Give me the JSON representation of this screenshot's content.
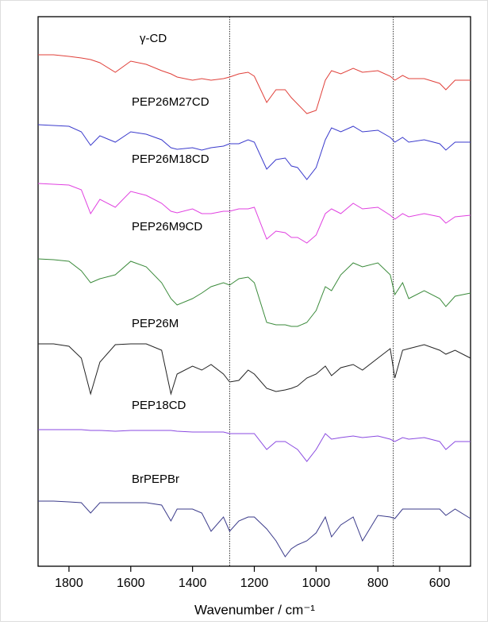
{
  "chart_data": {
    "type": "line",
    "x_label": "Wavenumber / cm⁻¹",
    "x": [
      1900,
      1850,
      1800,
      1760,
      1730,
      1700,
      1650,
      1600,
      1550,
      1500,
      1470,
      1450,
      1400,
      1370,
      1340,
      1300,
      1280,
      1250,
      1220,
      1200,
      1160,
      1130,
      1100,
      1080,
      1060,
      1030,
      1000,
      970,
      950,
      920,
      880,
      850,
      800,
      760,
      745,
      720,
      700,
      650,
      600,
      580,
      550,
      500
    ],
    "xlim": [
      1900,
      500
    ],
    "xticks": [
      1800,
      1600,
      1400,
      1200,
      1000,
      800,
      600
    ],
    "ylim": [
      0,
      692
    ],
    "vlines": [
      1280,
      750
    ],
    "series": [
      {
        "name": "γ-CD",
        "color": "#e0403a",
        "values": [
          644,
          644,
          642,
          640,
          638,
          634,
          622,
          636,
          632,
          624,
          620,
          616,
          612,
          614,
          612,
          614,
          616,
          620,
          622,
          617,
          584,
          600,
          600,
          590,
          582,
          570,
          574,
          612,
          624,
          620,
          627,
          622,
          624,
          617,
          612,
          618,
          614,
          614,
          608,
          600,
          612,
          612
        ]
      },
      {
        "name": "PEP26M27CD",
        "color": "#3a3acc",
        "values": [
          556,
          555,
          554,
          547,
          530,
          542,
          534,
          547,
          544,
          537,
          527,
          525,
          527,
          524,
          527,
          529,
          532,
          532,
          537,
          534,
          500,
          512,
          514,
          504,
          502,
          487,
          502,
          537,
          552,
          547,
          554,
          547,
          549,
          540,
          534,
          540,
          534,
          537,
          532,
          524,
          534,
          534
        ]
      },
      {
        "name": "PEP26M18CD",
        "color": "#e040e0",
        "values": [
          482,
          481,
          480,
          474,
          444,
          462,
          452,
          472,
          467,
          457,
          447,
          445,
          450,
          444,
          444,
          447,
          447,
          450,
          450,
          452,
          412,
          422,
          420,
          414,
          414,
          407,
          417,
          444,
          450,
          444,
          457,
          450,
          452,
          442,
          437,
          444,
          440,
          444,
          440,
          432,
          440,
          442
        ]
      },
      {
        "name": "PEP26M9CD",
        "color": "#3a8a3a",
        "values": [
          387,
          386,
          384,
          372,
          357,
          362,
          367,
          384,
          377,
          357,
          337,
          329,
          337,
          344,
          352,
          357,
          354,
          362,
          364,
          357,
          307,
          304,
          304,
          302,
          302,
          307,
          322,
          352,
          347,
          367,
          382,
          377,
          382,
          367,
          342,
          357,
          337,
          347,
          337,
          327,
          340,
          344
        ]
      },
      {
        "name": "PEP26M",
        "color": "#222222",
        "values": [
          280,
          280,
          277,
          262,
          217,
          257,
          279,
          280,
          280,
          272,
          217,
          242,
          252,
          247,
          254,
          242,
          232,
          234,
          247,
          242,
          224,
          220,
          222,
          224,
          227,
          237,
          242,
          252,
          240,
          250,
          254,
          247,
          262,
          274,
          237,
          272,
          274,
          279,
          272,
          267,
          272,
          262
        ]
      },
      {
        "name": "PEP18CD",
        "color": "#8a4ae0",
        "values": [
          172,
          172,
          172,
          172,
          171,
          171,
          170,
          171,
          171,
          171,
          171,
          170,
          169,
          169,
          169,
          169,
          167,
          167,
          167,
          167,
          147,
          157,
          157,
          152,
          147,
          132,
          147,
          167,
          160,
          162,
          164,
          162,
          164,
          160,
          157,
          162,
          160,
          162,
          157,
          147,
          157,
          157
        ]
      },
      {
        "name": "BrPEPBr",
        "color": "#3a3a8a",
        "values": [
          82,
          82,
          81,
          80,
          67,
          80,
          80,
          80,
          80,
          77,
          57,
          72,
          72,
          67,
          44,
          62,
          44,
          57,
          62,
          62,
          47,
          32,
          12,
          22,
          27,
          32,
          42,
          62,
          37,
          52,
          62,
          32,
          64,
          62,
          60,
          72,
          72,
          72,
          72,
          64,
          72,
          60
        ]
      }
    ]
  }
}
